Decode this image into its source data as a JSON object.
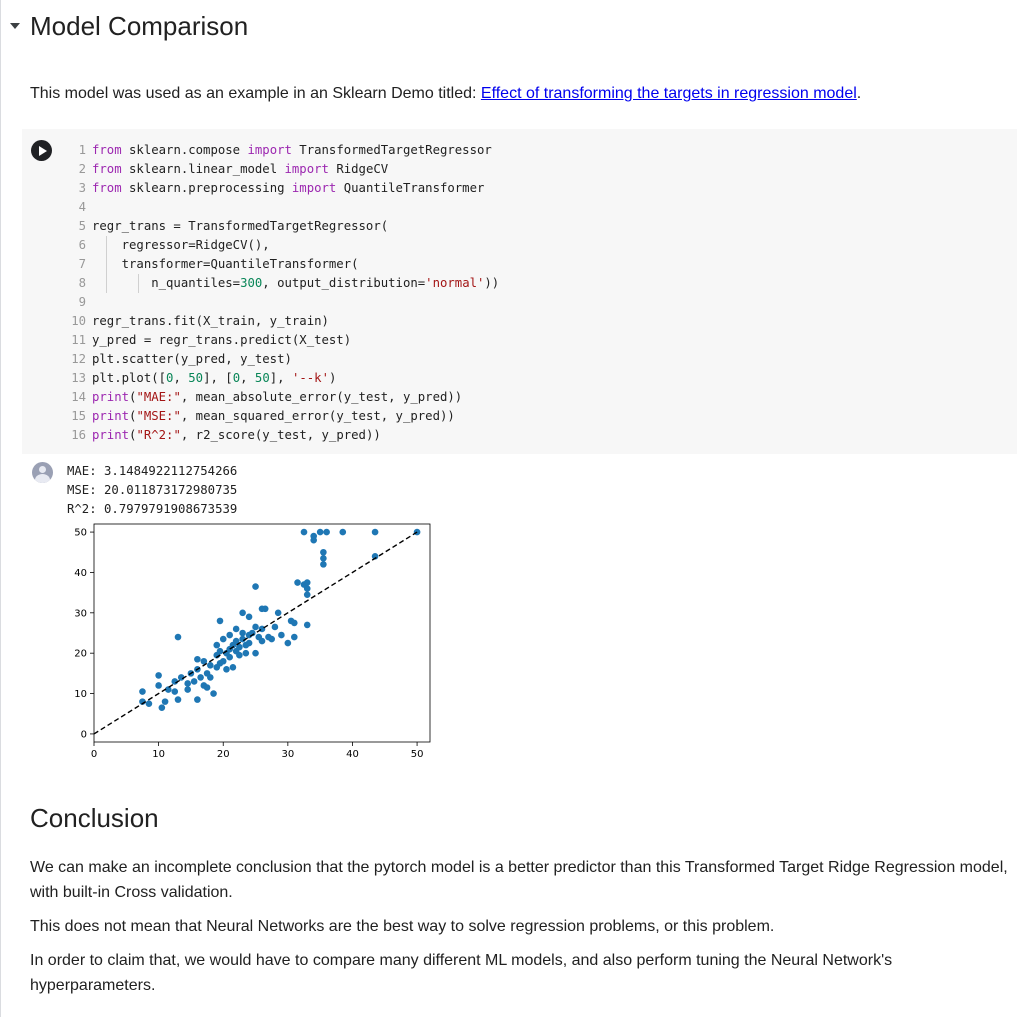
{
  "heading": "Model Comparison",
  "intro": {
    "text": "This model was used as an example in an Sklearn Demo titled: ",
    "link": "Effect of transforming the targets in regression model",
    "after": "."
  },
  "code_lines": [
    "1",
    "2",
    "3",
    "4",
    "5",
    "6",
    "7",
    "8",
    "9",
    "10",
    "11",
    "12",
    "13",
    "14",
    "15",
    "16"
  ],
  "output": {
    "mae": "MAE: 3.1484922112754266",
    "mse": "MSE: 20.011873172980735",
    "r2": "R^2: 0.7979791908673539"
  },
  "chart_data": {
    "type": "scatter",
    "xlim": [
      0,
      52
    ],
    "ylim": [
      -2,
      52
    ],
    "x_ticks": [
      0,
      10,
      20,
      30,
      40,
      50
    ],
    "y_ticks": [
      0,
      10,
      20,
      30,
      40,
      50
    ],
    "reference_line": {
      "x": [
        0,
        50
      ],
      "y": [
        0,
        50
      ],
      "style": "--k"
    },
    "point_color": "#1f77b4",
    "points": [
      [
        7.5,
        10.5
      ],
      [
        7.5,
        8
      ],
      [
        8.5,
        7.5
      ],
      [
        10.5,
        6.5
      ],
      [
        10,
        12
      ],
      [
        10,
        14.5
      ],
      [
        11,
        8
      ],
      [
        11.5,
        11
      ],
      [
        12.5,
        10.5
      ],
      [
        12.5,
        13
      ],
      [
        13,
        8.5
      ],
      [
        13,
        24
      ],
      [
        13.5,
        14
      ],
      [
        14.5,
        11
      ],
      [
        14.5,
        12.5
      ],
      [
        15,
        15
      ],
      [
        15.5,
        13
      ],
      [
        16,
        16
      ],
      [
        16,
        8.5
      ],
      [
        16,
        18.5
      ],
      [
        16.5,
        14
      ],
      [
        17,
        12
      ],
      [
        17,
        18
      ],
      [
        17.5,
        15
      ],
      [
        17.5,
        11.5
      ],
      [
        18,
        17
      ],
      [
        18,
        14
      ],
      [
        18.5,
        10
      ],
      [
        19,
        16.5
      ],
      [
        19,
        19.5
      ],
      [
        19,
        22
      ],
      [
        19.5,
        20.5
      ],
      [
        19.5,
        17.5
      ],
      [
        19.5,
        28
      ],
      [
        20,
        23.5
      ],
      [
        20,
        18
      ],
      [
        20.5,
        20
      ],
      [
        20.5,
        16
      ],
      [
        21,
        21
      ],
      [
        21,
        19
      ],
      [
        21,
        24.5
      ],
      [
        21.5,
        22
      ],
      [
        21.5,
        16.5
      ],
      [
        22,
        20.5
      ],
      [
        22,
        23
      ],
      [
        22,
        26
      ],
      [
        22.5,
        19.5
      ],
      [
        22.5,
        21.5
      ],
      [
        23,
        23.5
      ],
      [
        23,
        25
      ],
      [
        23,
        30
      ],
      [
        23.5,
        22
      ],
      [
        23.5,
        20
      ],
      [
        24,
        24.5
      ],
      [
        24,
        29
      ],
      [
        24,
        22.5
      ],
      [
        24.5,
        25
      ],
      [
        25,
        26.5
      ],
      [
        25,
        20
      ],
      [
        25,
        36.5
      ],
      [
        25.5,
        24
      ],
      [
        26,
        23
      ],
      [
        26,
        26
      ],
      [
        26.5,
        31
      ],
      [
        27,
        24
      ],
      [
        27.5,
        23.5
      ],
      [
        28,
        26.5
      ],
      [
        28.5,
        30
      ],
      [
        29,
        24.5
      ],
      [
        30,
        22.5
      ],
      [
        30.5,
        28
      ],
      [
        31,
        24
      ],
      [
        31,
        27.5
      ],
      [
        31.5,
        37.5
      ],
      [
        32.5,
        50
      ],
      [
        32.5,
        37
      ],
      [
        33,
        27
      ],
      [
        33,
        34.5
      ],
      [
        33,
        36
      ],
      [
        33,
        37.5
      ],
      [
        34,
        48
      ],
      [
        35,
        50
      ],
      [
        35.5,
        45
      ],
      [
        35.5,
        42
      ],
      [
        35.5,
        43.5
      ],
      [
        36,
        50
      ],
      [
        38.5,
        50
      ],
      [
        43.5,
        50
      ],
      [
        43.5,
        44
      ],
      [
        50,
        50
      ],
      [
        34,
        49
      ],
      [
        26,
        31
      ]
    ]
  },
  "conclusion": {
    "heading": "Conclusion",
    "p1": "We can make an incomplete conclusion that the pytorch model is a better predictor than this Transformed Target Ridge Regression model, with built-in Cross validation.",
    "p2": "This does not mean that Neural Networks are the best way to solve regression problems, or this problem.",
    "p3": "In order to claim that, we would have to compare many different ML models, and also perform tuning the Neural Network's hyperparameters."
  }
}
